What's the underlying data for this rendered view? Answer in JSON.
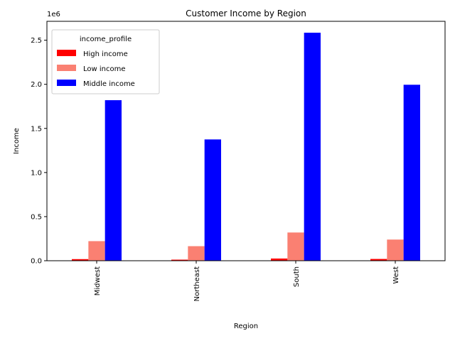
{
  "chart_data": {
    "type": "bar",
    "title": "Customer Income by Region",
    "xlabel": "Region",
    "ylabel": "Income",
    "offset_text": "1e6",
    "categories": [
      "Midwest",
      "Northeast",
      "South",
      "West"
    ],
    "series": [
      {
        "name": "High income",
        "color": "#ff0000",
        "values": [
          18000,
          12000,
          25000,
          20000
        ]
      },
      {
        "name": "Low income",
        "color": "#fa8072",
        "values": [
          222000,
          165000,
          320000,
          240000
        ]
      },
      {
        "name": "Middle income",
        "color": "#0000ff",
        "values": [
          1820000,
          1375000,
          2585000,
          1995000
        ]
      }
    ],
    "ylim": [
      0,
      2714250
    ],
    "yticks": [
      0,
      500000,
      1000000,
      1500000,
      2000000,
      2500000
    ],
    "ytick_labels": [
      "0.0",
      "0.5",
      "1.0",
      "1.5",
      "2.0",
      "2.5"
    ],
    "legend": {
      "title": "income_profile",
      "position": "top-left"
    },
    "grid": false
  }
}
